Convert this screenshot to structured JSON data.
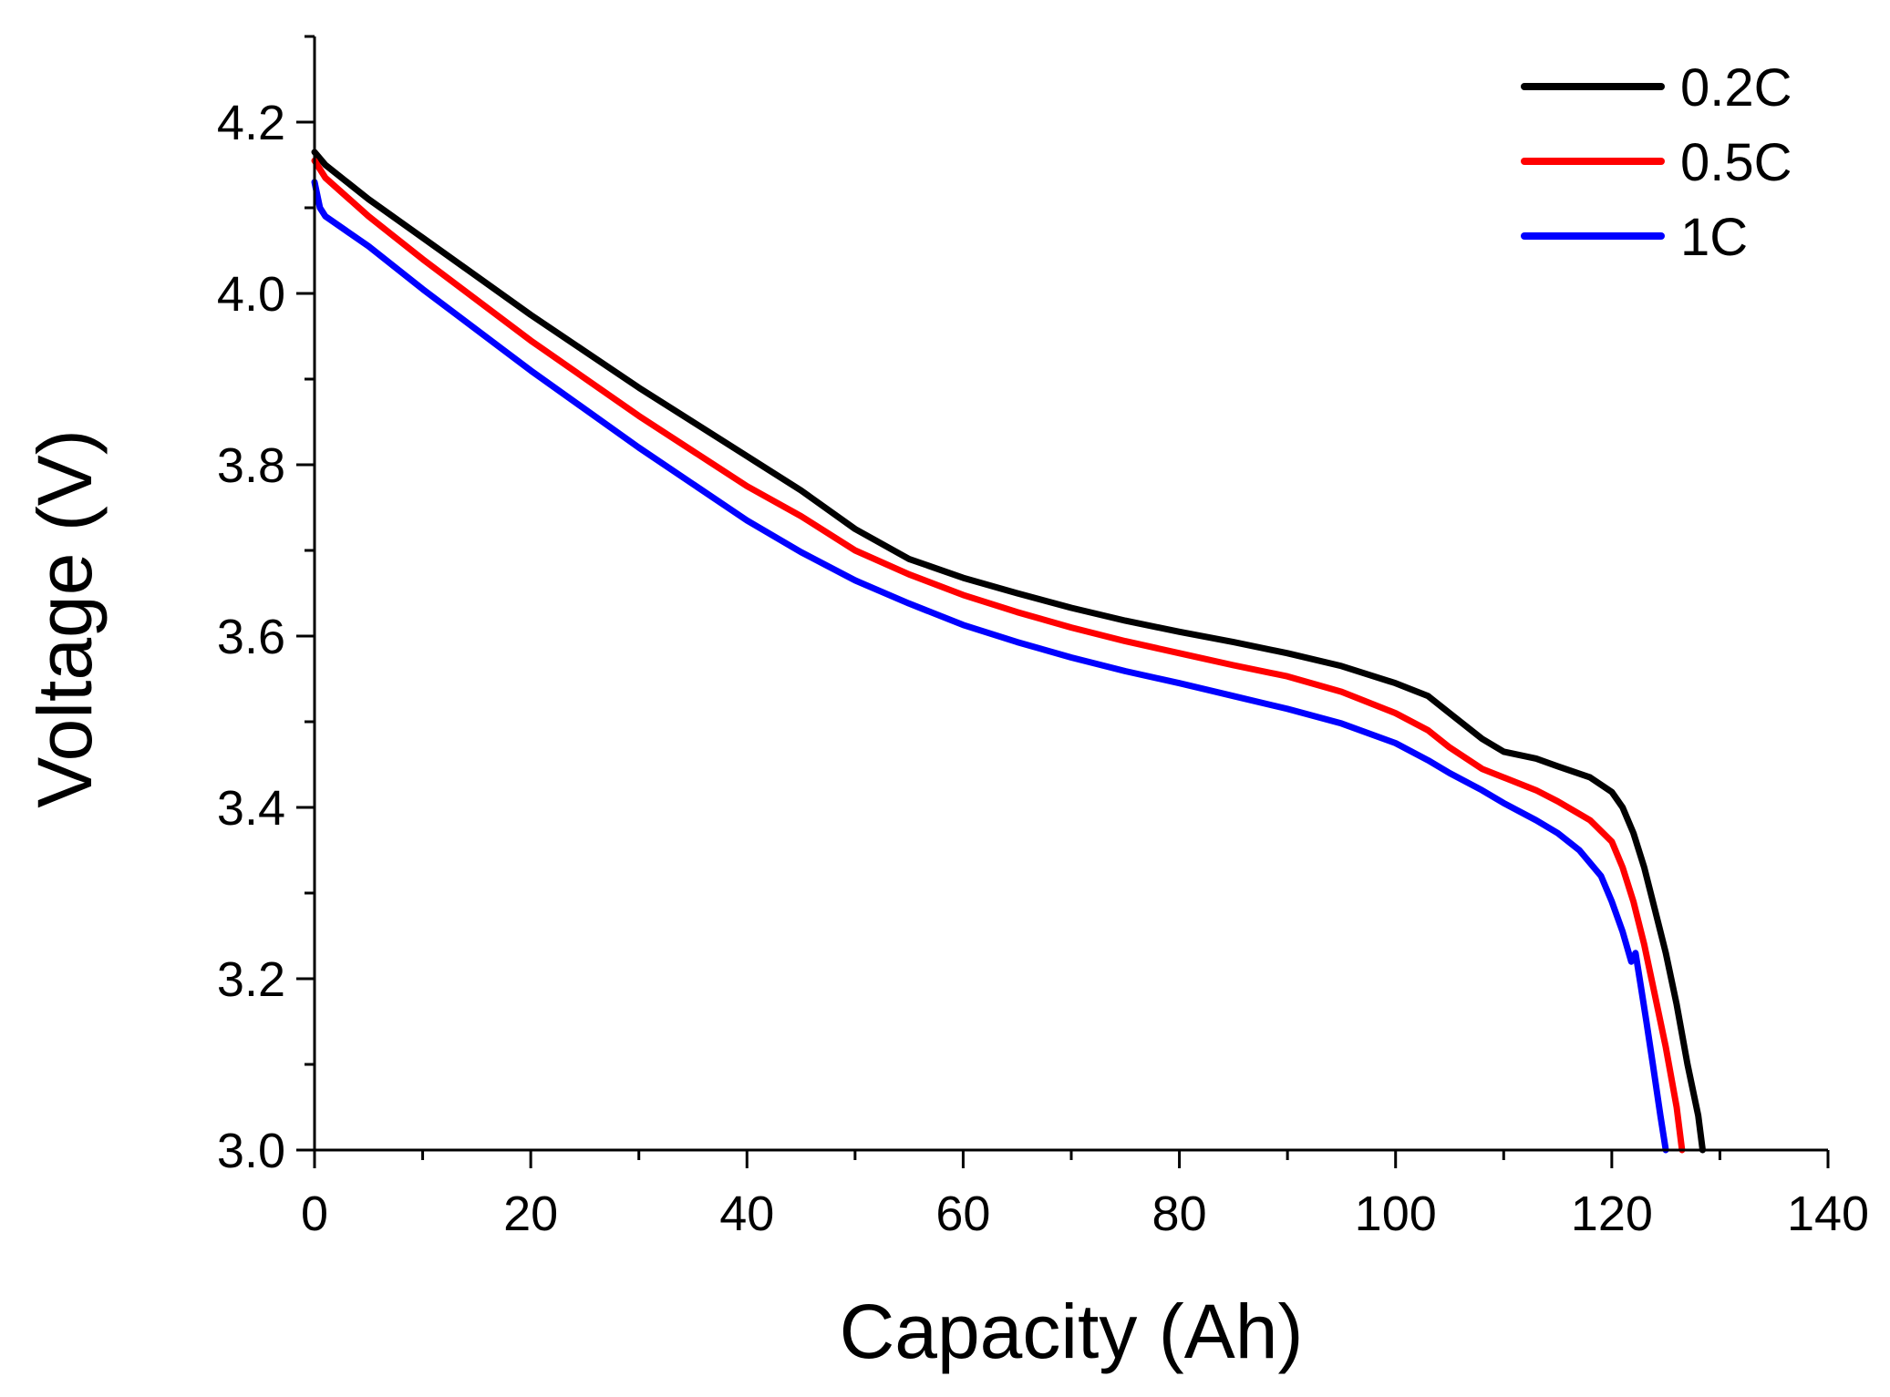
{
  "chart_data": {
    "type": "line",
    "title": "",
    "xlabel": "Capacity (Ah)",
    "ylabel": "Voltage (V)",
    "xlim": [
      0,
      140
    ],
    "ylim": [
      3.0,
      4.3
    ],
    "x_ticks": [
      0,
      20,
      40,
      60,
      80,
      100,
      120,
      140
    ],
    "x_tick_labels": [
      "0",
      "20",
      "40",
      "60",
      "80",
      "100",
      "120",
      "140"
    ],
    "y_ticks": [
      3.0,
      3.2,
      3.4,
      3.6,
      3.8,
      4.0,
      4.2
    ],
    "y_tick_labels": [
      "3.0",
      "3.2",
      "3.4",
      "3.6",
      "3.8",
      "4.0",
      "4.2"
    ],
    "x_minor_step": 10,
    "y_minor_step": 0.1,
    "grid": false,
    "legend_position": "top-right",
    "series": [
      {
        "name": "0.2C",
        "color": "#000000",
        "points": [
          [
            0,
            4.165
          ],
          [
            1,
            4.15
          ],
          [
            5,
            4.11
          ],
          [
            10,
            4.065
          ],
          [
            20,
            3.975
          ],
          [
            30,
            3.89
          ],
          [
            40,
            3.81
          ],
          [
            45,
            3.77
          ],
          [
            50,
            3.725
          ],
          [
            55,
            3.69
          ],
          [
            60,
            3.668
          ],
          [
            65,
            3.65
          ],
          [
            70,
            3.633
          ],
          [
            75,
            3.618
          ],
          [
            80,
            3.605
          ],
          [
            85,
            3.593
          ],
          [
            90,
            3.58
          ],
          [
            95,
            3.565
          ],
          [
            100,
            3.545
          ],
          [
            103,
            3.53
          ],
          [
            105,
            3.51
          ],
          [
            108,
            3.48
          ],
          [
            110,
            3.465
          ],
          [
            113,
            3.457
          ],
          [
            115,
            3.448
          ],
          [
            118,
            3.435
          ],
          [
            120,
            3.418
          ],
          [
            121,
            3.4
          ],
          [
            122,
            3.37
          ],
          [
            123,
            3.33
          ],
          [
            124,
            3.28
          ],
          [
            125,
            3.23
          ],
          [
            126,
            3.17
          ],
          [
            127,
            3.1
          ],
          [
            128,
            3.04
          ],
          [
            128.4,
            3.0
          ]
        ]
      },
      {
        "name": "0.5C",
        "color": "#ff0000",
        "points": [
          [
            0,
            4.155
          ],
          [
            1,
            4.135
          ],
          [
            5,
            4.09
          ],
          [
            10,
            4.04
          ],
          [
            20,
            3.945
          ],
          [
            30,
            3.857
          ],
          [
            40,
            3.775
          ],
          [
            45,
            3.74
          ],
          [
            50,
            3.7
          ],
          [
            55,
            3.672
          ],
          [
            60,
            3.648
          ],
          [
            65,
            3.628
          ],
          [
            70,
            3.61
          ],
          [
            75,
            3.594
          ],
          [
            80,
            3.58
          ],
          [
            85,
            3.566
          ],
          [
            90,
            3.553
          ],
          [
            95,
            3.535
          ],
          [
            100,
            3.51
          ],
          [
            103,
            3.49
          ],
          [
            105,
            3.47
          ],
          [
            108,
            3.445
          ],
          [
            110,
            3.435
          ],
          [
            113,
            3.42
          ],
          [
            115,
            3.407
          ],
          [
            118,
            3.385
          ],
          [
            120,
            3.36
          ],
          [
            121,
            3.33
          ],
          [
            122,
            3.29
          ],
          [
            123,
            3.24
          ],
          [
            124,
            3.18
          ],
          [
            125,
            3.12
          ],
          [
            126,
            3.05
          ],
          [
            126.5,
            3.0
          ]
        ]
      },
      {
        "name": "1C",
        "color": "#0000ff",
        "points": [
          [
            0,
            4.13
          ],
          [
            0.5,
            4.1
          ],
          [
            1,
            4.09
          ],
          [
            5,
            4.055
          ],
          [
            10,
            4.005
          ],
          [
            20,
            3.91
          ],
          [
            30,
            3.82
          ],
          [
            40,
            3.735
          ],
          [
            45,
            3.698
          ],
          [
            50,
            3.665
          ],
          [
            55,
            3.638
          ],
          [
            60,
            3.613
          ],
          [
            65,
            3.593
          ],
          [
            70,
            3.575
          ],
          [
            75,
            3.559
          ],
          [
            80,
            3.545
          ],
          [
            85,
            3.53
          ],
          [
            90,
            3.515
          ],
          [
            95,
            3.498
          ],
          [
            100,
            3.475
          ],
          [
            103,
            3.455
          ],
          [
            105,
            3.44
          ],
          [
            108,
            3.42
          ],
          [
            110,
            3.405
          ],
          [
            113,
            3.385
          ],
          [
            115,
            3.37
          ],
          [
            117,
            3.35
          ],
          [
            119,
            3.32
          ],
          [
            120,
            3.29
          ],
          [
            121,
            3.255
          ],
          [
            121.8,
            3.22
          ],
          [
            122.2,
            3.23
          ],
          [
            122.7,
            3.19
          ],
          [
            123.2,
            3.15
          ],
          [
            123.8,
            3.1
          ],
          [
            124.5,
            3.04
          ],
          [
            125,
            3.0
          ]
        ]
      }
    ]
  }
}
